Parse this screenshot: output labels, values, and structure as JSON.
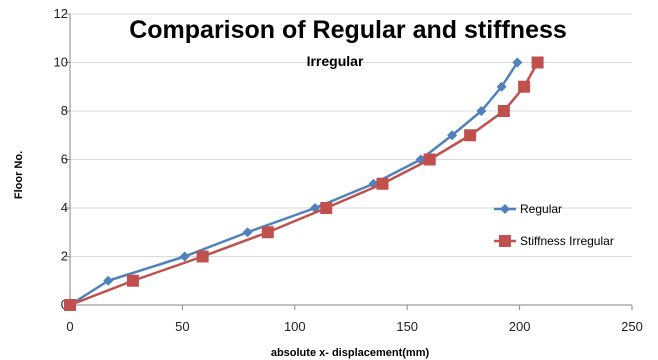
{
  "chart_data": {
    "type": "line",
    "title": "Comparison of Regular and stiffness",
    "subtitle": "Irregular",
    "xlabel": "absolute x- displacement(mm)",
    "ylabel": "Floor No.",
    "xlim": [
      0,
      250
    ],
    "ylim": [
      0,
      12
    ],
    "xticks": [
      0,
      50,
      100,
      150,
      200,
      250
    ],
    "yticks": [
      0,
      2,
      4,
      6,
      8,
      10,
      12
    ],
    "grid": "horizontal",
    "legend_position": "right",
    "series": [
      {
        "name": "Regular",
        "color": "#4F81BD",
        "marker": "diamond",
        "points": [
          {
            "x": 0,
            "y": 0
          },
          {
            "x": 17,
            "y": 1
          },
          {
            "x": 51,
            "y": 2
          },
          {
            "x": 79,
            "y": 3
          },
          {
            "x": 109,
            "y": 4
          },
          {
            "x": 135,
            "y": 5
          },
          {
            "x": 156,
            "y": 6
          },
          {
            "x": 170,
            "y": 7
          },
          {
            "x": 183,
            "y": 8
          },
          {
            "x": 192,
            "y": 9
          },
          {
            "x": 199,
            "y": 10
          }
        ]
      },
      {
        "name": "Stiffness Irregular",
        "color": "#C0504D",
        "marker": "square",
        "points": [
          {
            "x": 0,
            "y": 0
          },
          {
            "x": 28,
            "y": 1
          },
          {
            "x": 59,
            "y": 2
          },
          {
            "x": 88,
            "y": 3
          },
          {
            "x": 114,
            "y": 4
          },
          {
            "x": 139,
            "y": 5
          },
          {
            "x": 160,
            "y": 6
          },
          {
            "x": 178,
            "y": 7
          },
          {
            "x": 193,
            "y": 8
          },
          {
            "x": 202,
            "y": 9
          },
          {
            "x": 208,
            "y": 10
          }
        ]
      }
    ]
  }
}
